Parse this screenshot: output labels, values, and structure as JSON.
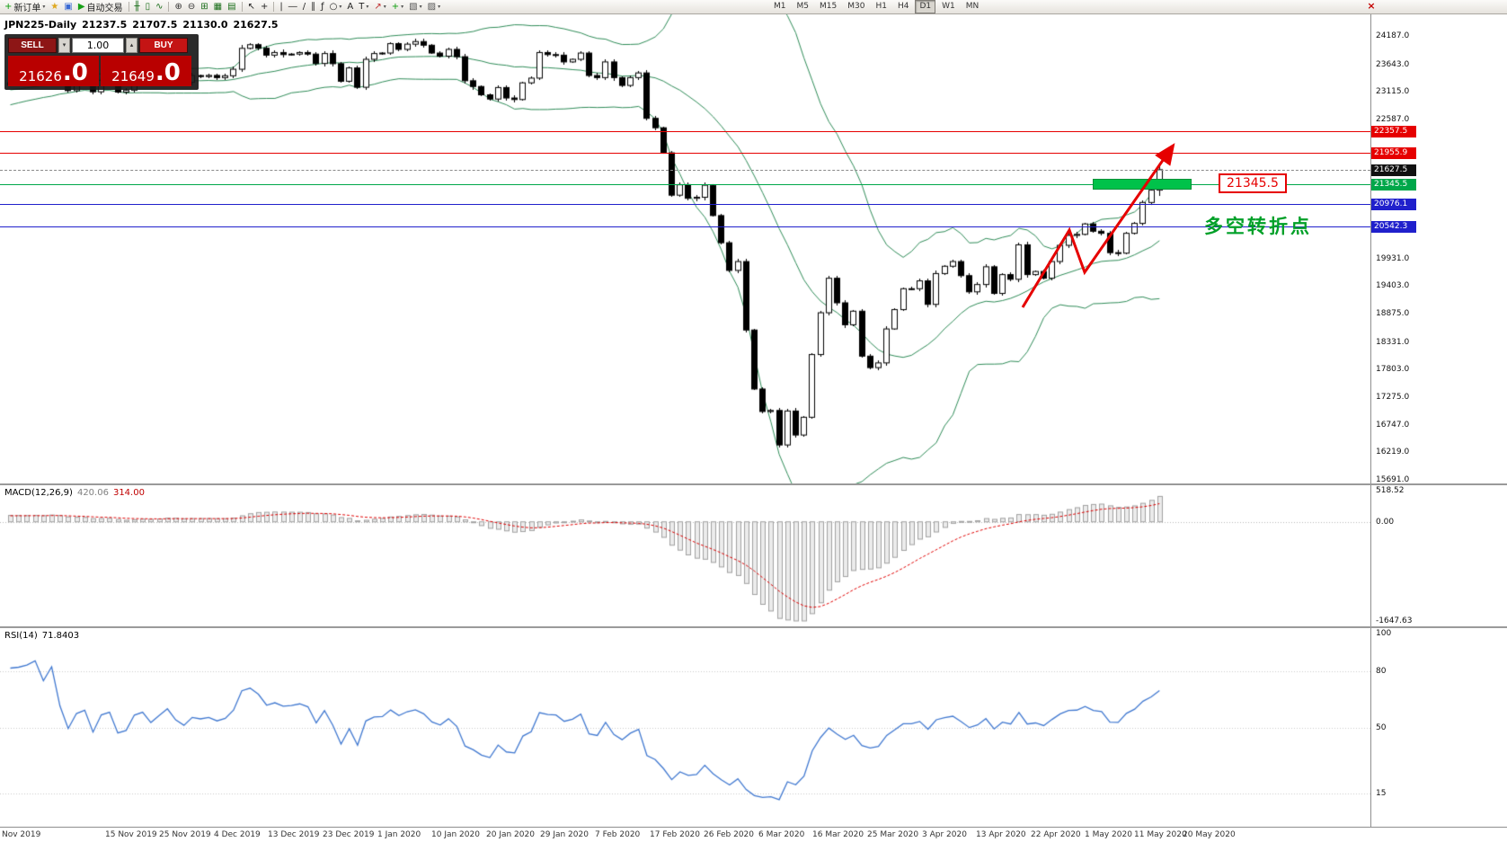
{
  "window": {
    "close_glyph": "×"
  },
  "toolbar": {
    "buttons_left": [
      {
        "name": "new-order-button",
        "glyph": "+",
        "glyph_color": "#0a9c0a",
        "label": "新订单",
        "dropdown": true
      },
      {
        "name": "favorites-icon",
        "glyph": "★",
        "glyph_color": "#dfa81e"
      },
      {
        "name": "market-watch-icon",
        "glyph": "▣",
        "glyph_color": "#3a6ad4"
      },
      {
        "name": "autotrading-button",
        "glyph": "▶",
        "glyph_color": "#18a018",
        "label": "自动交易"
      },
      {
        "sep": true
      },
      {
        "name": "chart-bars-icon",
        "glyph": "╫",
        "glyph_color": "#1a6e1a"
      },
      {
        "name": "chart-candles-icon",
        "glyph": "▯",
        "glyph_color": "#1a6e1a"
      },
      {
        "name": "chart-line-icon",
        "glyph": "∿",
        "glyph_color": "#1a6e1a"
      },
      {
        "sep": true
      },
      {
        "name": "zoom-in-icon",
        "glyph": "⊕",
        "glyph_color": "#333333"
      },
      {
        "name": "zoom-out-icon",
        "glyph": "⊖",
        "glyph_color": "#333333"
      },
      {
        "name": "tile-windows-icon",
        "glyph": "⊞",
        "glyph_color": "#1a6e1a"
      },
      {
        "name": "cascade-windows-icon",
        "glyph": "▦",
        "glyph_color": "#1a6e1a"
      },
      {
        "name": "arrange-windows-icon",
        "glyph": "▤",
        "glyph_color": "#1a6e1a"
      },
      {
        "sep": true
      },
      {
        "name": "cursor-icon",
        "glyph": "↖",
        "glyph_color": "#222222"
      },
      {
        "name": "crosshair-icon",
        "glyph": "+",
        "glyph_color": "#222222"
      },
      {
        "sep": true
      },
      {
        "name": "vertical-line-icon",
        "glyph": "|",
        "glyph_color": "#222222"
      },
      {
        "name": "horizontal-line-icon",
        "glyph": "―",
        "glyph_color": "#222222"
      },
      {
        "name": "trendline-icon",
        "glyph": "/",
        "glyph_color": "#222222"
      },
      {
        "name": "channel-icon",
        "glyph": "∥",
        "glyph_color": "#222222"
      },
      {
        "name": "fibonacci-icon",
        "glyph": "ƒ",
        "glyph_color": "#222222"
      },
      {
        "name": "shapes-icon",
        "glyph": "○",
        "glyph_color": "#222222",
        "dropdown": true
      },
      {
        "name": "text-icon",
        "glyph": "A",
        "glyph_color": "#222222"
      },
      {
        "name": "label-icon",
        "glyph": "T",
        "glyph_color": "#222222",
        "dropdown": true
      },
      {
        "name": "arrow-tool-icon",
        "glyph": "↗",
        "glyph_color": "#c03030",
        "dropdown": true
      },
      {
        "name": "indicators-icon",
        "glyph": "+",
        "glyph_color": "#0a9c0a",
        "dropdown": true
      },
      {
        "name": "periods-icon",
        "glyph": "▧",
        "glyph_color": "#555555",
        "dropdown": true
      },
      {
        "name": "template-icon",
        "glyph": "▨",
        "glyph_color": "#555555",
        "dropdown": true
      }
    ],
    "timeframes": [
      "M1",
      "M5",
      "M15",
      "M30",
      "H1",
      "H4",
      "D1",
      "W1",
      "MN"
    ],
    "active_timeframe": "D1"
  },
  "chart": {
    "title": "JPN225-Daily",
    "ohlc": {
      "open": "21237.5",
      "high": "21707.5",
      "low": "21130.0",
      "close": "21627.5"
    },
    "current_price": "21627.5",
    "trade_panel": {
      "sell_label": "SELL",
      "buy_label": "BUY",
      "volume": "1.00",
      "spin_down": "▾",
      "spin_up": "▴",
      "bid_main": "21626",
      "bid_big": ".0",
      "ask_main": "21649",
      "ask_big": ".0"
    },
    "annotations": {
      "support_label": "21345.5",
      "turning_point_text": "多空转折点"
    },
    "time_labels": [
      "Nov 2019",
      "15 Nov 2019",
      "25 Nov 2019",
      "4 Dec 2019",
      "13 Dec 2019",
      "23 Dec 2019",
      "1 Jan 2020",
      "10 Jan 2020",
      "20 Jan 2020",
      "29 Jan 2020",
      "7 Feb 2020",
      "17 Feb 2020",
      "26 Feb 2020",
      "6 Mar 2020",
      "16 Mar 2020",
      "25 Mar 2020",
      "3 Apr 2020",
      "13 Apr 2020",
      "22 Apr 2020",
      "1 May 2020",
      "11 May 2020",
      "20 May 2020"
    ]
  },
  "chart_data": {
    "type": "candlestick",
    "symbol": "JPN225",
    "timeframe": "Daily",
    "title": "JPN225-Daily 21237.5 21707.5 21130.0 21627.5",
    "price_axis": {
      "ticks": [
        "24187.0",
        "23643.0",
        "23115.0",
        "22587.0",
        "20459.0",
        "19931.0",
        "19403.0",
        "18875.0",
        "18331.0",
        "17803.0",
        "17275.0",
        "16747.0",
        "16219.0",
        "15691.0"
      ]
    },
    "levels": [
      {
        "price": 22357.5,
        "label": "22357.5",
        "color": "#e60000"
      },
      {
        "price": 21955.9,
        "label": "21955.9",
        "color": "#e60000"
      },
      {
        "price": 21345.5,
        "label": "21345.5",
        "color": "#00a74a"
      },
      {
        "price": 20976.1,
        "label": "20976.1",
        "color": "#2020cc"
      },
      {
        "price": 20542.3,
        "label": "20542.3",
        "color": "#2020cc"
      }
    ],
    "current_price_tag": {
      "label": "21627.5",
      "color": "#111111"
    },
    "bollinger": {
      "period": 20,
      "deviation": 2,
      "color": "#2e8b57"
    },
    "pre_closes": [
      22850,
      22900,
      22930,
      22960,
      23000,
      22980,
      23030,
      23050,
      23100,
      23150,
      23180,
      23210,
      23250,
      23300,
      23310,
      23280,
      23250,
      23300,
      23320,
      23300
    ],
    "closes": [
      23292,
      23303,
      23330,
      23392,
      23332,
      23520,
      23320,
      23141,
      23300,
      23340,
      23118,
      23340,
      23380,
      23113,
      23148,
      23380,
      23430,
      23293,
      23409,
      23530,
      23380,
      23300,
      23430,
      23410,
      23432,
      23390,
      23425,
      23550,
      23950,
      24020,
      23952,
      23820,
      23870,
      23830,
      23840,
      23870,
      23840,
      23660,
      23850,
      23656,
      23320,
      23575,
      23205,
      23740,
      23850,
      23860,
      24040,
      23930,
      24030,
      24080,
      24010,
      23860,
      23800,
      23930,
      23790,
      23330,
      23220,
      23060,
      22980,
      23200,
      23000,
      22970,
      23290,
      23380,
      23870,
      23830,
      23820,
      23690,
      23740,
      23860,
      23430,
      23390,
      23690,
      23390,
      23240,
      23390,
      23480,
      22610,
      22430,
      21950,
      21140,
      21340,
      21080,
      21100,
      21330,
      20750,
      20230,
      19700,
      19870,
      18560,
      17430,
      17000,
      17020,
      16360,
      17010,
      16550,
      16890,
      18090,
      18890,
      19550,
      19080,
      18660,
      18920,
      18060,
      17840,
      17930,
      18580,
      18950,
      19350,
      19350,
      19500,
      19050,
      19640,
      19780,
      19870,
      19600,
      19290,
      19430,
      19770,
      19260,
      19620,
      19530,
      20190,
      19620,
      19680,
      19550,
      19870,
      20180,
      20370,
      20390,
      20590,
      20450,
      20410,
      20040,
      20030,
      20410,
      20600,
      21000,
      21237,
      21627.5
    ],
    "indicators": {
      "macd": {
        "label": "MACD(12,26,9)",
        "params": [
          12,
          26,
          9
        ],
        "value_main": "420.06",
        "value_signal": "314.00",
        "scale_ticks": [
          "518.52",
          "0.00",
          "-1647.63"
        ]
      },
      "rsi": {
        "label": "RSI(14)",
        "params": [
          14
        ],
        "value": "71.8403",
        "scale_ticks": [
          "100",
          "80",
          "50",
          "15"
        ]
      }
    }
  }
}
